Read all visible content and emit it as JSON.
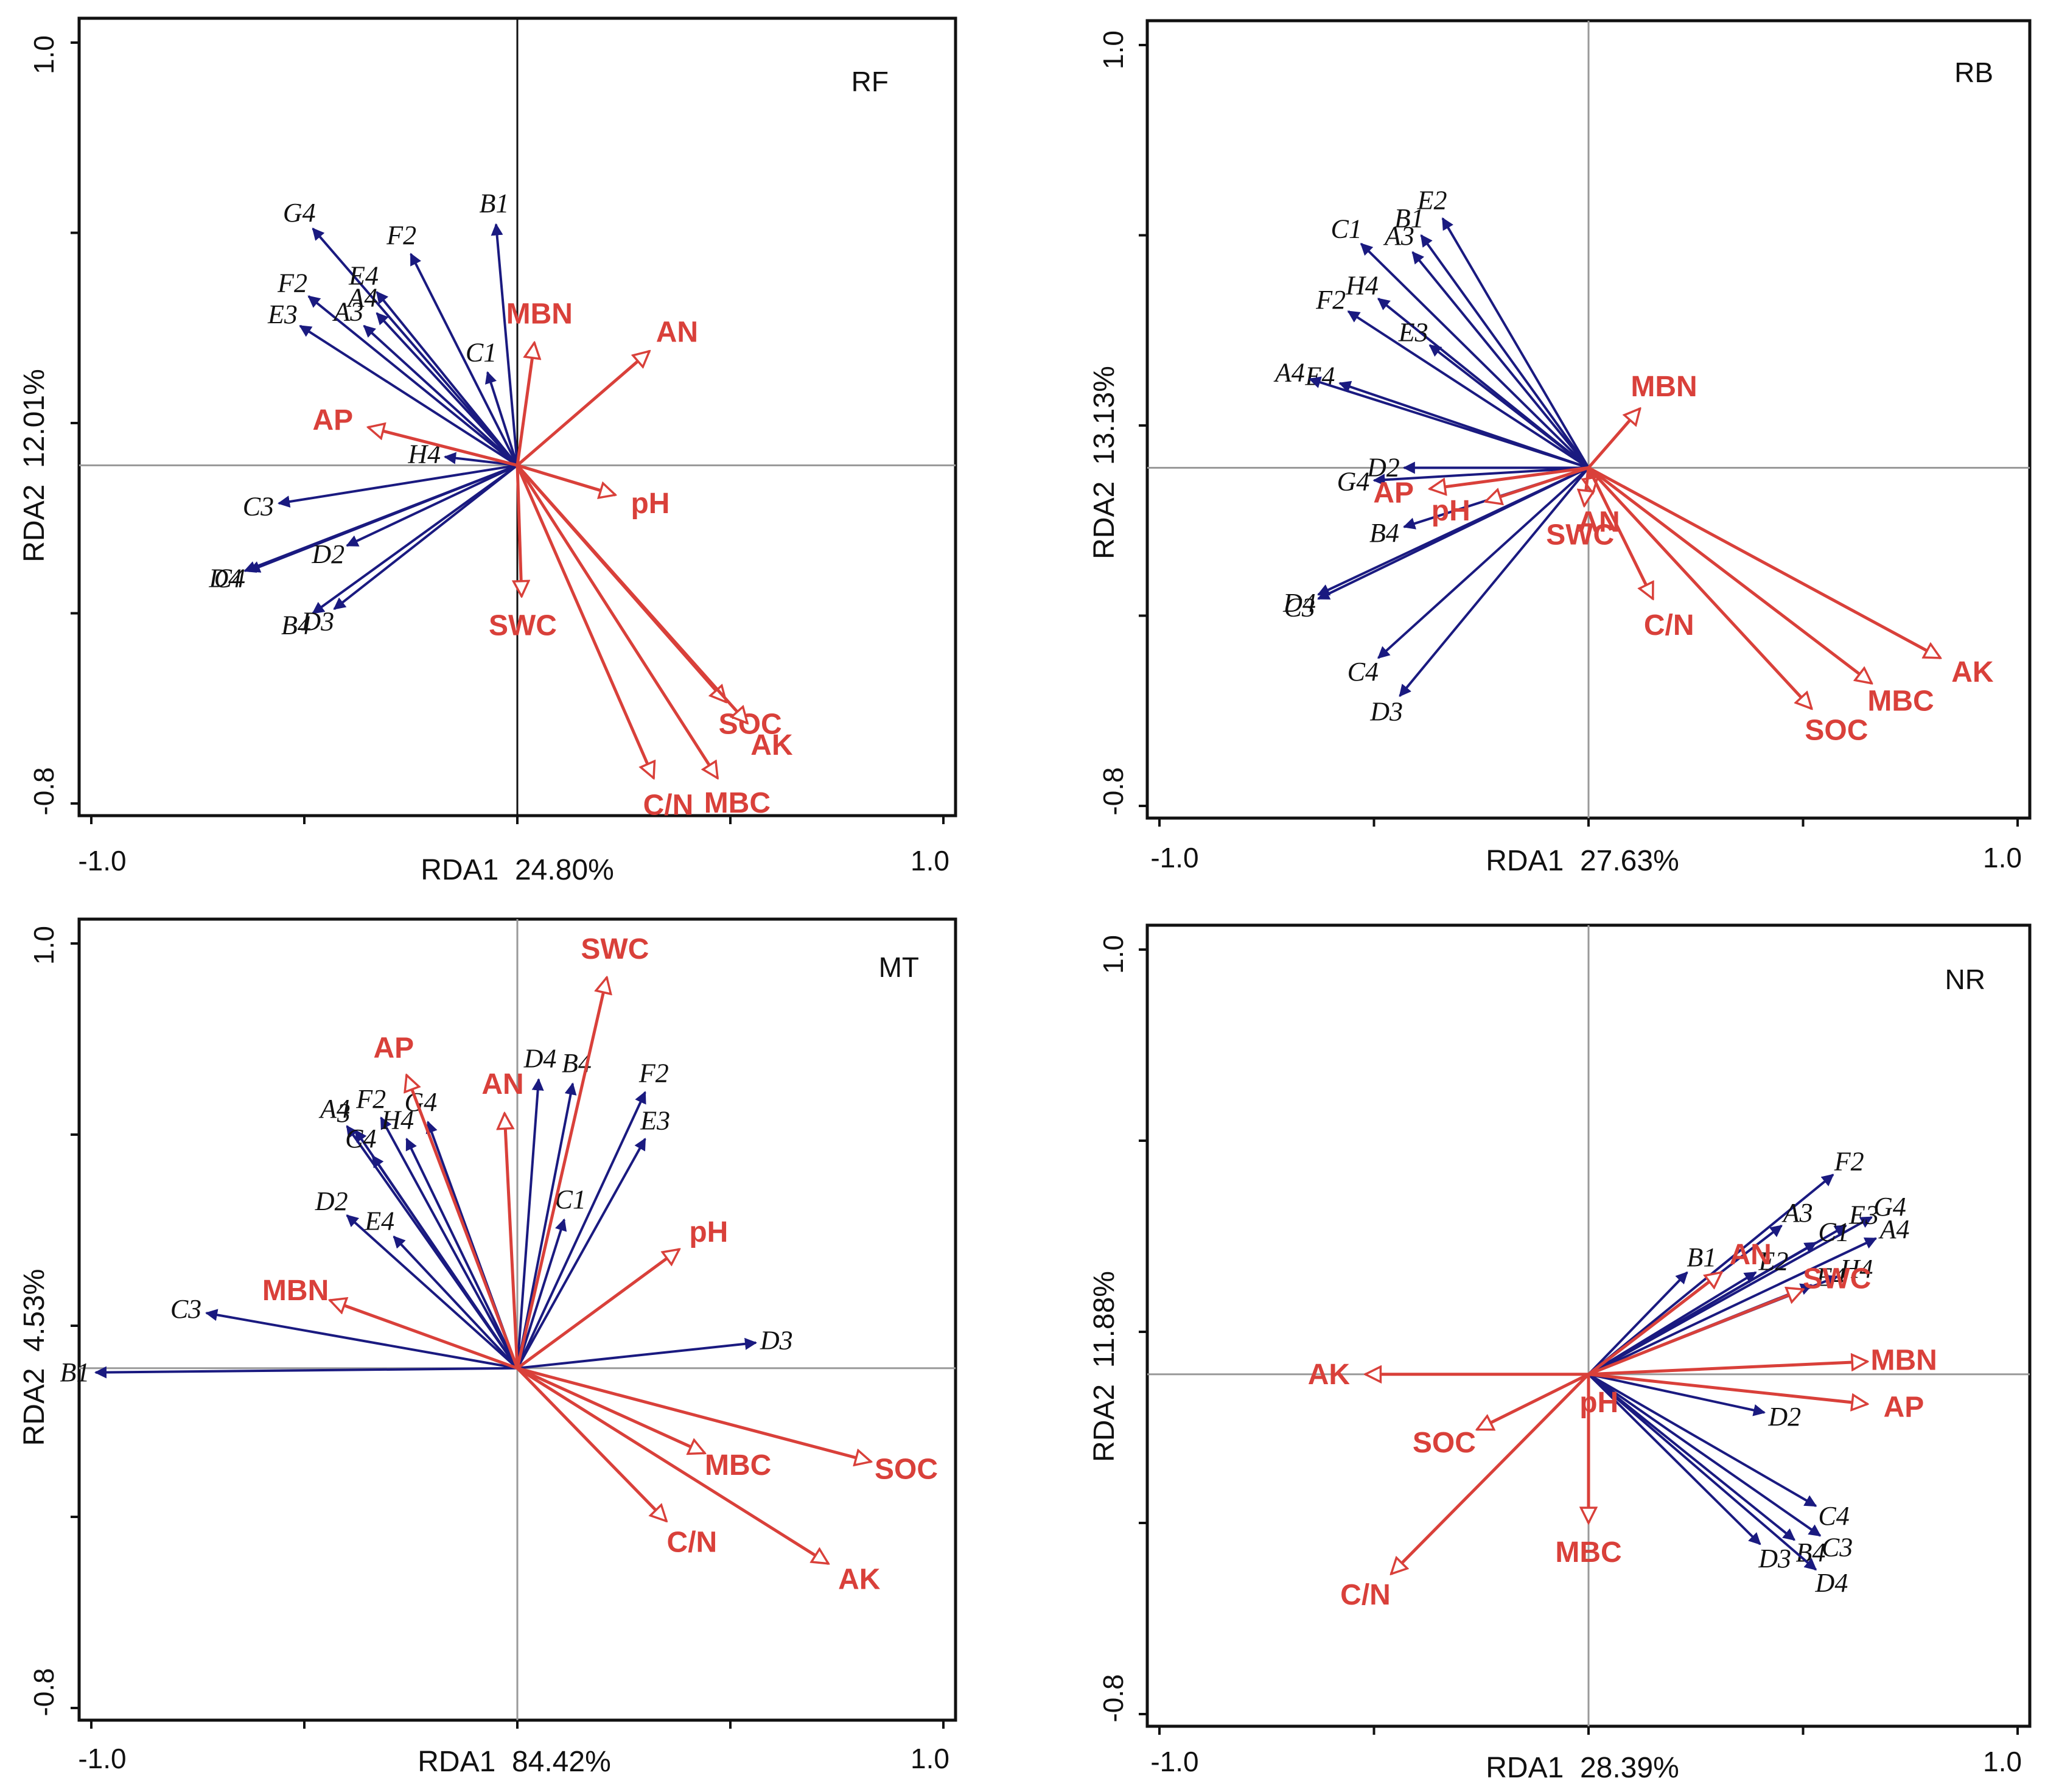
{
  "figure": {
    "colors": {
      "species": "#1a1a80",
      "environment": "#d9403a",
      "frame": "#111111",
      "zero_line": "#9a9a9a"
    }
  },
  "chart_data": [
    {
      "type": "scatter",
      "subtype": "rda-biplot",
      "title": "RF",
      "xlabel": "RDA1  24.80%",
      "ylabel": "RDA2  12.01%",
      "xlim": [
        -1.0,
        1.0
      ],
      "ylim": [
        -0.8,
        1.0
      ],
      "x_tick_labels": [
        "-1.0",
        "1.0"
      ],
      "y_tick_labels": [
        "-0.8",
        "1.0"
      ],
      "species": [
        {
          "name": "G4",
          "x": -0.48,
          "y": 0.56
        },
        {
          "name": "F2",
          "x": -0.25,
          "y": 0.5
        },
        {
          "name": "B1",
          "x": -0.05,
          "y": 0.57
        },
        {
          "name": "E4",
          "x": -0.33,
          "y": 0.41
        },
        {
          "name": "A4",
          "x": -0.33,
          "y": 0.36
        },
        {
          "name": "F2",
          "x": -0.49,
          "y": 0.4
        },
        {
          "name": "A3",
          "x": -0.36,
          "y": 0.33
        },
        {
          "name": "E3",
          "x": -0.51,
          "y": 0.33
        },
        {
          "name": "C1",
          "x": -0.07,
          "y": 0.22
        },
        {
          "name": "H4",
          "x": -0.17,
          "y": 0.02
        },
        {
          "name": "C3",
          "x": -0.56,
          "y": -0.09
        },
        {
          "name": "D4",
          "x": -0.64,
          "y": -0.25
        },
        {
          "name": "C4",
          "x": -0.63,
          "y": -0.25
        },
        {
          "name": "D2",
          "x": -0.4,
          "y": -0.19
        },
        {
          "name": "B4",
          "x": -0.48,
          "y": -0.35
        },
        {
          "name": "D3",
          "x": -0.43,
          "y": -0.34
        }
      ],
      "environment": [
        {
          "name": "MBN",
          "x": 0.04,
          "y": 0.29
        },
        {
          "name": "AN",
          "x": 0.31,
          "y": 0.27
        },
        {
          "name": "AP",
          "x": -0.35,
          "y": 0.09
        },
        {
          "name": "pH",
          "x": 0.23,
          "y": -0.07
        },
        {
          "name": "SWC",
          "x": 0.01,
          "y": -0.31
        },
        {
          "name": "SOC",
          "x": 0.49,
          "y": -0.56
        },
        {
          "name": "AK",
          "x": 0.54,
          "y": -0.61
        },
        {
          "name": "C/N",
          "x": 0.32,
          "y": -0.74
        },
        {
          "name": "MBC",
          "x": 0.47,
          "y": -0.74
        }
      ]
    },
    {
      "type": "scatter",
      "subtype": "rda-biplot",
      "title": "RB",
      "xlabel": "RDA1  27.63%",
      "ylabel": "RDA2  13.13%",
      "xlim": [
        -1.0,
        1.0
      ],
      "ylim": [
        -0.8,
        1.0
      ],
      "x_tick_labels": [
        "-1.0",
        "1.0"
      ],
      "y_tick_labels": [
        "-0.8",
        "1.0"
      ],
      "species": [
        {
          "name": "B1",
          "x": -0.39,
          "y": 0.55
        },
        {
          "name": "E2",
          "x": -0.34,
          "y": 0.59
        },
        {
          "name": "C1",
          "x": -0.53,
          "y": 0.53
        },
        {
          "name": "A3",
          "x": -0.41,
          "y": 0.51
        },
        {
          "name": "H4",
          "x": -0.49,
          "y": 0.4
        },
        {
          "name": "F2",
          "x": -0.56,
          "y": 0.37
        },
        {
          "name": "E3",
          "x": -0.37,
          "y": 0.29
        },
        {
          "name": "E4",
          "x": -0.58,
          "y": 0.2
        },
        {
          "name": "A4",
          "x": -0.65,
          "y": 0.21
        },
        {
          "name": "D2",
          "x": -0.43,
          "y": 0.0
        },
        {
          "name": "G4",
          "x": -0.5,
          "y": -0.03
        },
        {
          "name": "B4",
          "x": -0.43,
          "y": -0.14
        },
        {
          "name": "D4",
          "x": -0.63,
          "y": -0.3
        },
        {
          "name": "C3",
          "x": -0.63,
          "y": -0.31
        },
        {
          "name": "C4",
          "x": -0.49,
          "y": -0.45
        },
        {
          "name": "D3",
          "x": -0.44,
          "y": -0.54
        }
      ],
      "environment": [
        {
          "name": "MBN",
          "x": 0.12,
          "y": 0.14
        },
        {
          "name": "AN",
          "x": 0.01,
          "y": -0.06
        },
        {
          "name": "AP",
          "x": -0.37,
          "y": -0.05
        },
        {
          "name": "pH",
          "x": -0.24,
          "y": -0.08
        },
        {
          "name": "SWC",
          "x": -0.01,
          "y": -0.09
        },
        {
          "name": "C/N",
          "x": 0.15,
          "y": -0.31
        },
        {
          "name": "AK",
          "x": 0.82,
          "y": -0.45
        },
        {
          "name": "MBC",
          "x": 0.66,
          "y": -0.51
        },
        {
          "name": "SOC",
          "x": 0.52,
          "y": -0.57
        }
      ]
    },
    {
      "type": "scatter",
      "subtype": "rda-biplot",
      "title": "MT",
      "xlabel": "RDA1  84.42%",
      "ylabel": "RDA2  4.53%",
      "xlim": [
        -1.0,
        1.0
      ],
      "ylim": [
        -0.8,
        1.0
      ],
      "x_tick_labels": [
        "-1.0",
        "1.0"
      ],
      "y_tick_labels": [
        "-0.8",
        "1.0"
      ],
      "species": [
        {
          "name": "A4",
          "x": -0.4,
          "y": 0.57
        },
        {
          "name": "3",
          "x": -0.38,
          "y": 0.56
        },
        {
          "name": "F2",
          "x": -0.32,
          "y": 0.59
        },
        {
          "name": "G4",
          "x": -0.21,
          "y": 0.58
        },
        {
          "name": "H4",
          "x": -0.26,
          "y": 0.54
        },
        {
          "name": "C4",
          "x": -0.34,
          "y": 0.5
        },
        {
          "name": "D2",
          "x": -0.4,
          "y": 0.36
        },
        {
          "name": "E4",
          "x": -0.29,
          "y": 0.31
        },
        {
          "name": "D4",
          "x": 0.05,
          "y": 0.68
        },
        {
          "name": "B4",
          "x": 0.13,
          "y": 0.67
        },
        {
          "name": "F2",
          "x": 0.3,
          "y": 0.65
        },
        {
          "name": "E3",
          "x": 0.3,
          "y": 0.54
        },
        {
          "name": "C1",
          "x": 0.11,
          "y": 0.35
        },
        {
          "name": "C3",
          "x": -0.73,
          "y": 0.13
        },
        {
          "name": "B1",
          "x": -0.99,
          "y": -0.01
        },
        {
          "name": "D3",
          "x": 0.56,
          "y": 0.06
        }
      ],
      "environment": [
        {
          "name": "SWC",
          "x": 0.21,
          "y": 0.92
        },
        {
          "name": "AP",
          "x": -0.26,
          "y": 0.69
        },
        {
          "name": "AN",
          "x": -0.03,
          "y": 0.6
        },
        {
          "name": "pH",
          "x": 0.38,
          "y": 0.28
        },
        {
          "name": "MBN",
          "x": -0.44,
          "y": 0.16
        },
        {
          "name": "MBC",
          "x": 0.44,
          "y": -0.2
        },
        {
          "name": "SOC",
          "x": 0.83,
          "y": -0.22
        },
        {
          "name": "C/N",
          "x": 0.35,
          "y": -0.36
        },
        {
          "name": "AK",
          "x": 0.73,
          "y": -0.46
        }
      ]
    },
    {
      "type": "scatter",
      "subtype": "rda-biplot",
      "title": "NR",
      "xlabel": "RDA1  28.39%",
      "ylabel": "RDA2  11.88%",
      "xlim": [
        -1.0,
        1.0
      ],
      "ylim": [
        -0.8,
        1.0
      ],
      "x_tick_labels": [
        "-1.0",
        "1.0"
      ],
      "y_tick_labels": [
        "-0.8",
        "1.0"
      ],
      "species": [
        {
          "name": "F2",
          "x": 0.57,
          "y": 0.47
        },
        {
          "name": "G4",
          "x": 0.66,
          "y": 0.37
        },
        {
          "name": "A3",
          "x": 0.45,
          "y": 0.35
        },
        {
          "name": "E3",
          "x": 0.6,
          "y": 0.35
        },
        {
          "name": "C1",
          "x": 0.53,
          "y": 0.31
        },
        {
          "name": "A4",
          "x": 0.67,
          "y": 0.32
        },
        {
          "name": "B1",
          "x": 0.23,
          "y": 0.24
        },
        {
          "name": "E2",
          "x": 0.39,
          "y": 0.24
        },
        {
          "name": "E4",
          "x": 0.52,
          "y": 0.21
        },
        {
          "name": "H4",
          "x": 0.58,
          "y": 0.23
        },
        {
          "name": "D2",
          "x": 0.41,
          "y": -0.09
        },
        {
          "name": "C4",
          "x": 0.53,
          "y": -0.31
        },
        {
          "name": "B4",
          "x": 0.48,
          "y": -0.39
        },
        {
          "name": "C3",
          "x": 0.54,
          "y": -0.38
        },
        {
          "name": "D3",
          "x": 0.4,
          "y": -0.4
        },
        {
          "name": "D4",
          "x": 0.53,
          "y": -0.46
        }
      ],
      "environment": [
        {
          "name": "AN",
          "x": 0.31,
          "y": 0.24
        },
        {
          "name": "SWC",
          "x": 0.5,
          "y": 0.2
        },
        {
          "name": "MBN",
          "x": 0.65,
          "y": 0.03
        },
        {
          "name": "AP",
          "x": 0.65,
          "y": -0.07
        },
        {
          "name": "AK",
          "x": -0.52,
          "y": 0.0
        },
        {
          "name": "SOC",
          "x": -0.26,
          "y": -0.13
        },
        {
          "name": "pH",
          "x": 0.0,
          "y": 0.0
        },
        {
          "name": "MBC",
          "x": 0.0,
          "y": -0.35
        },
        {
          "name": "C/N",
          "x": -0.46,
          "y": -0.47
        }
      ]
    }
  ]
}
